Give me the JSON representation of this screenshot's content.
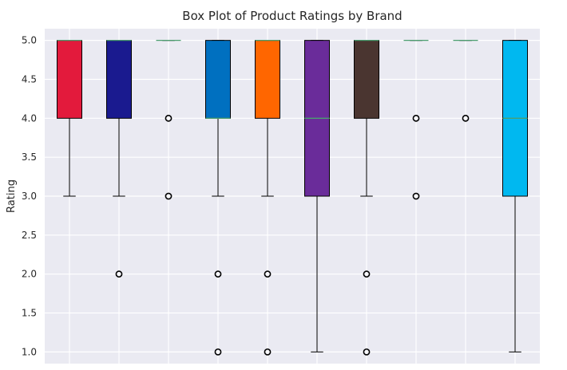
{
  "chart_data": {
    "type": "box",
    "title": "Box Plot of Product Ratings by Brand",
    "xlabel": "",
    "ylabel": "Rating",
    "ylim": [
      0.85,
      5.15
    ],
    "yticks": [
      "1.0",
      "1.5",
      "2.0",
      "2.5",
      "3.0",
      "3.5",
      "4.0",
      "4.5",
      "5.0"
    ],
    "grid": true,
    "box_style": {
      "background": "#EAEAF2",
      "grid_color": "#FFFFFF",
      "median_color": "#4C9F70",
      "edge_color": "#000000"
    },
    "boxes": [
      {
        "q1": 4,
        "median": 5,
        "q3": 5,
        "whisker_low": 3,
        "whisker_high": 5,
        "outliers": [],
        "color": "#E31A3C"
      },
      {
        "q1": 4,
        "median": 5,
        "q3": 5,
        "whisker_low": 3,
        "whisker_high": 5,
        "outliers": [
          2
        ],
        "color": "#1A1A8F"
      },
      {
        "q1": 5,
        "median": 5,
        "q3": 5,
        "whisker_low": 5,
        "whisker_high": 5,
        "outliers": [
          4,
          3
        ],
        "color": "#B0B0B0"
      },
      {
        "q1": 4,
        "median": 4,
        "q3": 5,
        "whisker_low": 3,
        "whisker_high": 5,
        "outliers": [
          2,
          1
        ],
        "color": "#0070C0"
      },
      {
        "q1": 4,
        "median": 5,
        "q3": 5,
        "whisker_low": 3,
        "whisker_high": 5,
        "outliers": [
          2,
          1
        ],
        "color": "#FF6600"
      },
      {
        "q1": 3,
        "median": 4,
        "q3": 5,
        "whisker_low": 1,
        "whisker_high": 5,
        "outliers": [],
        "color": "#6A2C9A"
      },
      {
        "q1": 4,
        "median": 5,
        "q3": 5,
        "whisker_low": 3,
        "whisker_high": 5,
        "outliers": [
          2,
          1
        ],
        "color": "#4A3530"
      },
      {
        "q1": 5,
        "median": 5,
        "q3": 5,
        "whisker_low": 5,
        "whisker_high": 5,
        "outliers": [
          4,
          3
        ],
        "color": "#B0B0B0"
      },
      {
        "q1": 5,
        "median": 5,
        "q3": 5,
        "whisker_low": 5,
        "whisker_high": 5,
        "outliers": [
          4
        ],
        "color": "#B0B0B0"
      },
      {
        "q1": 3,
        "median": 4,
        "q3": 5,
        "whisker_low": 1,
        "whisker_high": 5,
        "outliers": [],
        "color": "#00B8F0"
      }
    ]
  }
}
